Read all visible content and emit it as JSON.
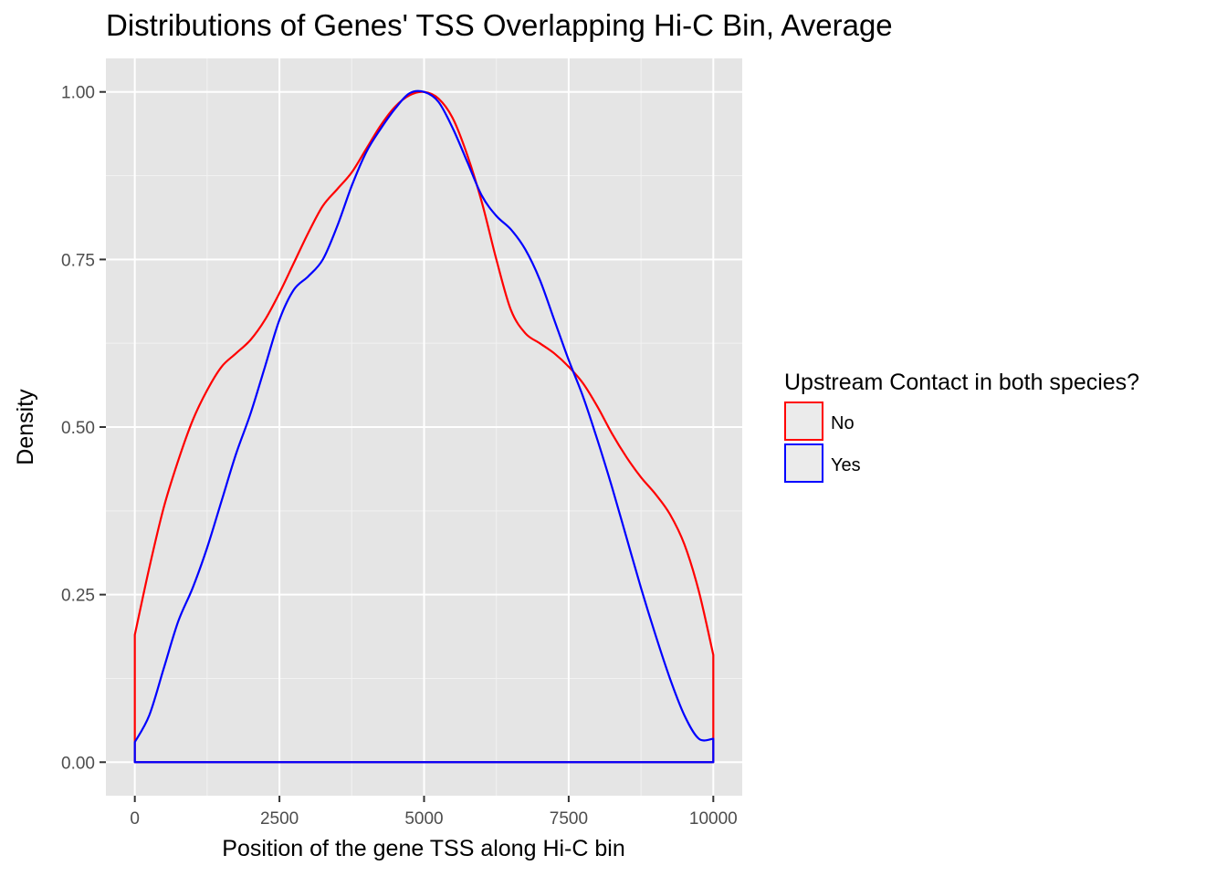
{
  "chart_data": {
    "type": "line",
    "title": "Distributions of Genes' TSS Overlapping Hi-C Bin, Average",
    "xlabel": "Position of the gene TSS along Hi-C bin",
    "ylabel": "Density",
    "xlim": [
      -500,
      10500
    ],
    "ylim": [
      -0.05,
      1.05
    ],
    "x_ticks": [
      {
        "value": 0,
        "label": "0"
      },
      {
        "value": 2500,
        "label": "2500"
      },
      {
        "value": 5000,
        "label": "5000"
      },
      {
        "value": 7500,
        "label": "7500"
      },
      {
        "value": 10000,
        "label": "10000"
      }
    ],
    "y_ticks": [
      {
        "value": 0,
        "label": "0.00"
      },
      {
        "value": 0.25,
        "label": "0.25"
      },
      {
        "value": 0.5,
        "label": "0.50"
      },
      {
        "value": 0.75,
        "label": "0.75"
      },
      {
        "value": 1.0,
        "label": "1.00"
      }
    ],
    "grid": true,
    "panel_background": "#e5e5e5",
    "legend": {
      "title": "Upstream Contact in both species?",
      "position": "right"
    },
    "series": [
      {
        "name": "No",
        "color": "#ff0000",
        "x": [
          0,
          250,
          500,
          750,
          1000,
          1250,
          1500,
          1750,
          2000,
          2250,
          2500,
          2750,
          3000,
          3250,
          3500,
          3750,
          4000,
          4250,
          4500,
          4750,
          5000,
          5250,
          5500,
          5750,
          6000,
          6250,
          6500,
          6750,
          7000,
          7250,
          7500,
          7750,
          8000,
          8250,
          8500,
          8750,
          9000,
          9250,
          9500,
          9750,
          10000
        ],
        "y": [
          0.19,
          0.29,
          0.38,
          0.45,
          0.51,
          0.555,
          0.59,
          0.61,
          0.63,
          0.66,
          0.7,
          0.745,
          0.79,
          0.83,
          0.855,
          0.88,
          0.915,
          0.95,
          0.978,
          0.995,
          1.0,
          0.99,
          0.96,
          0.905,
          0.835,
          0.75,
          0.675,
          0.64,
          0.625,
          0.61,
          0.59,
          0.565,
          0.53,
          0.49,
          0.455,
          0.425,
          0.4,
          0.37,
          0.325,
          0.255,
          0.16
        ]
      },
      {
        "name": "Yes",
        "color": "#0000ff",
        "x": [
          0,
          250,
          500,
          750,
          1000,
          1250,
          1500,
          1750,
          2000,
          2250,
          2500,
          2750,
          3000,
          3250,
          3500,
          3750,
          4000,
          4250,
          4500,
          4750,
          5000,
          5250,
          5500,
          5750,
          6000,
          6250,
          6500,
          6750,
          7000,
          7250,
          7500,
          7750,
          8000,
          8250,
          8500,
          8750,
          9000,
          9250,
          9500,
          9750,
          10000
        ],
        "y": [
          0.03,
          0.07,
          0.14,
          0.21,
          0.26,
          0.32,
          0.39,
          0.46,
          0.52,
          0.59,
          0.66,
          0.705,
          0.725,
          0.75,
          0.8,
          0.86,
          0.91,
          0.945,
          0.975,
          0.998,
          1.0,
          0.985,
          0.945,
          0.895,
          0.845,
          0.815,
          0.795,
          0.765,
          0.72,
          0.66,
          0.6,
          0.545,
          0.48,
          0.41,
          0.335,
          0.26,
          0.19,
          0.125,
          0.07,
          0.035,
          0.035
        ]
      }
    ]
  }
}
